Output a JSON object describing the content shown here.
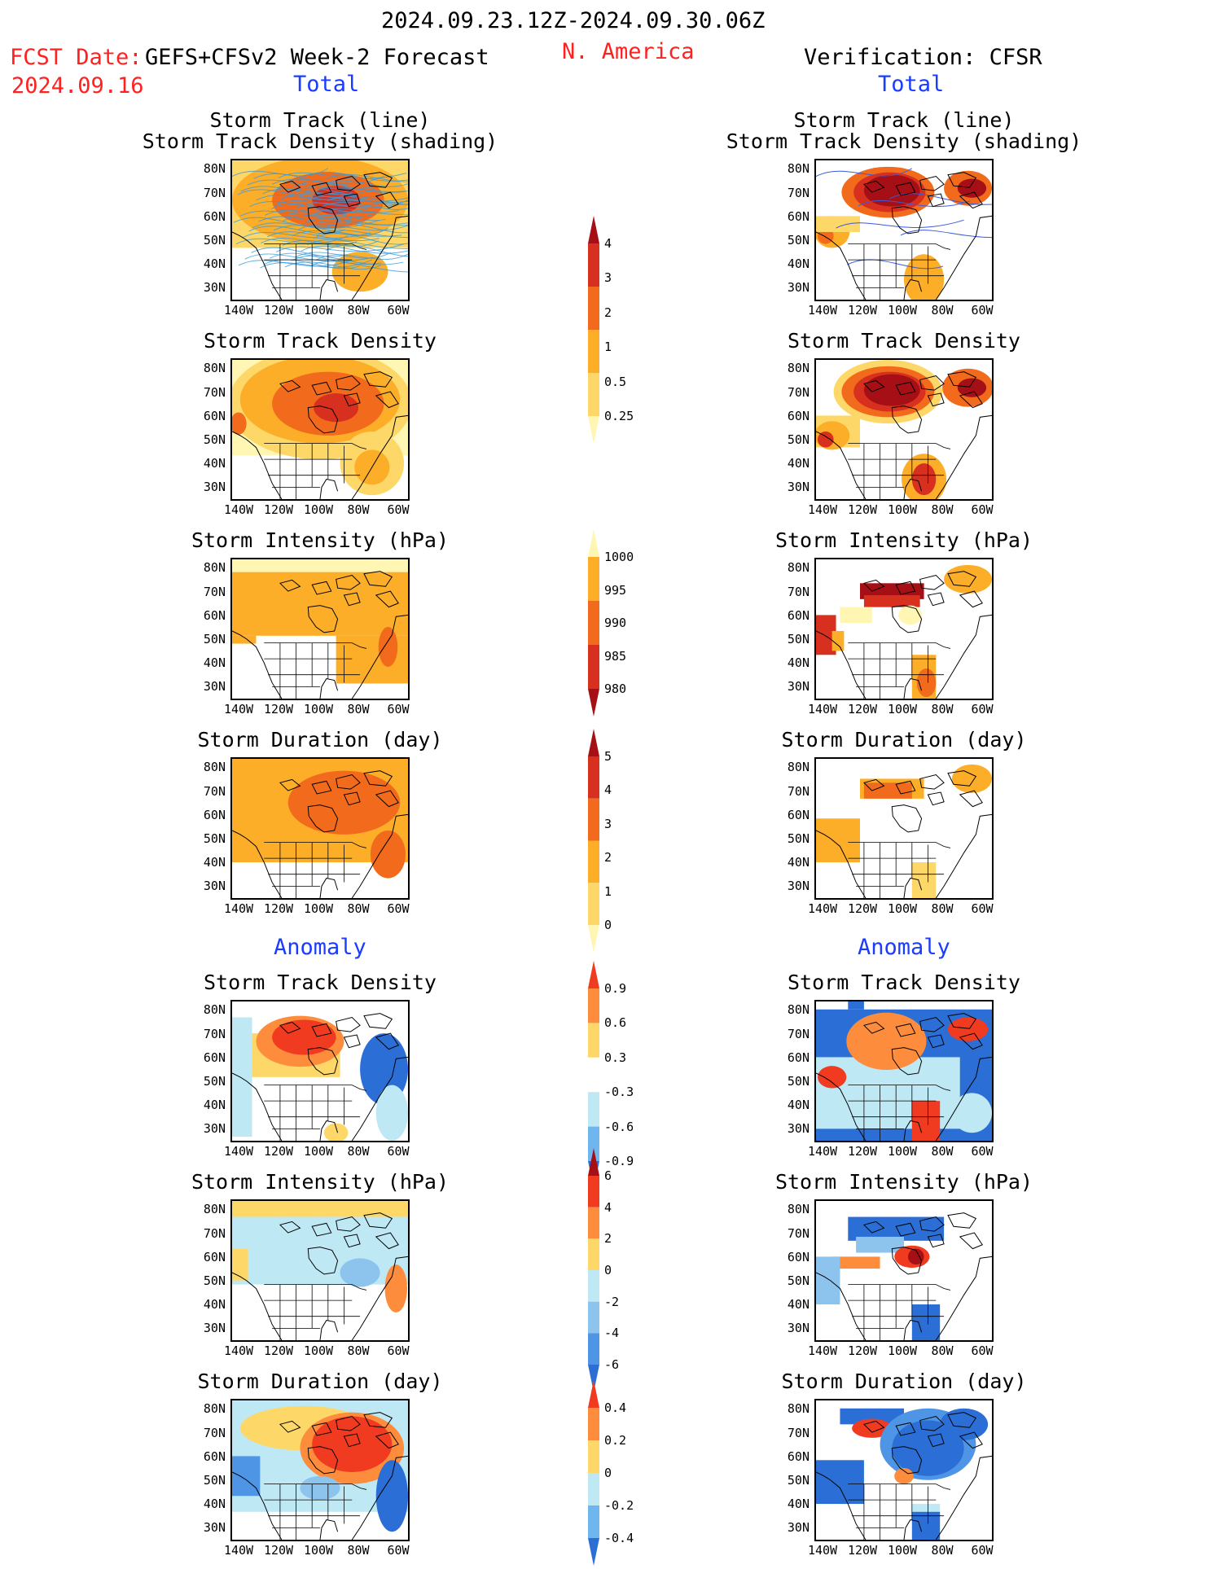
{
  "header": {
    "period": "2024.09.23.12Z-2024.09.30.06Z",
    "fcst_label": "FCST Date:",
    "fcst_date": "2024.09.16",
    "model": "GEFS+CFSv2 Week-2 Forecast",
    "region": "N. America",
    "verification": "Verification: CFSR",
    "total_left": "Total",
    "total_right": "Total",
    "anomaly_left": "Anomaly",
    "anomaly_right": "Anomaly"
  },
  "axes": {
    "lat_ticks": [
      "80N",
      "70N",
      "60N",
      "50N",
      "40N",
      "30N"
    ],
    "lon_ticks": [
      "140W",
      "120W",
      "100W",
      "80W",
      "60W"
    ]
  },
  "panels": {
    "left": [
      {
        "title1": "Storm Track (line)",
        "title2": "Storm Track Density (shading)",
        "kind": "track_fc"
      },
      {
        "title1": "Storm Track Density",
        "kind": "dens_fc"
      },
      {
        "title1": "Storm Intensity (hPa)",
        "kind": "int_fc"
      },
      {
        "title1": "Storm Duration (day)",
        "kind": "dur_fc"
      },
      {
        "title1": "Storm Track Density",
        "kind": "adens_fc"
      },
      {
        "title1": "Storm Intensity (hPa)",
        "kind": "aint_fc"
      },
      {
        "title1": "Storm Duration (day)",
        "kind": "adur_fc"
      }
    ],
    "right": [
      {
        "title1": "Storm Track (line)",
        "title2": "Storm Track Density (shading)",
        "kind": "track_ob"
      },
      {
        "title1": "Storm Track Density",
        "kind": "dens_ob"
      },
      {
        "title1": "Storm Intensity (hPa)",
        "kind": "int_ob"
      },
      {
        "title1": "Storm Duration (day)",
        "kind": "dur_ob"
      },
      {
        "title1": "Storm Track Density",
        "kind": "adens_ob"
      },
      {
        "title1": "Storm Intensity (hPa)",
        "kind": "aint_ob"
      },
      {
        "title1": "Storm Duration (day)",
        "kind": "adur_ob"
      }
    ]
  },
  "colorbars": [
    {
      "name": "density",
      "labels": [
        "4",
        "3",
        "2",
        "1",
        "0.5",
        "0.25"
      ],
      "colors": [
        "#a50f15",
        "#d7301f",
        "#f26b1d",
        "#fdae28",
        "#fdd868",
        "#fff6b4"
      ]
    },
    {
      "name": "intensity",
      "labels": [
        "1000",
        "995",
        "990",
        "985",
        "980"
      ],
      "colors": [
        "#fff6b4",
        "#fdae28",
        "#f26b1d",
        "#d7301f",
        "#a50f15"
      ]
    },
    {
      "name": "duration",
      "labels": [
        "5",
        "4",
        "3",
        "2",
        "1",
        "0"
      ],
      "colors": [
        "#a50f15",
        "#d7301f",
        "#f26b1d",
        "#fdae28",
        "#fdd868",
        "#fff6b4"
      ]
    },
    {
      "name": "anom_density",
      "labels": [
        "0.9",
        "0.6",
        "0.3",
        "-0.3",
        "-0.6",
        "-0.9"
      ],
      "colors": [
        "#f03b20",
        "#fd8d3c",
        "#fdd868",
        "#ffffff",
        "#bfe8f5",
        "#6fb6ee",
        "#2b6fd6"
      ]
    },
    {
      "name": "anom_intensity",
      "labels": [
        "6",
        "4",
        "2",
        "0",
        "-2",
        "-4",
        "-6"
      ],
      "colors": [
        "#a50f15",
        "#f03b20",
        "#fd8d3c",
        "#fdd868",
        "#bfe8f5",
        "#8cc4ee",
        "#4f95e6",
        "#2b6fd6"
      ]
    },
    {
      "name": "anom_duration",
      "labels": [
        "0.4",
        "0.2",
        "0",
        "-0.2",
        "-0.4"
      ],
      "colors": [
        "#f03b20",
        "#fd8d3c",
        "#fdd868",
        "#bfe8f5",
        "#6fb6ee",
        "#2b6fd6"
      ]
    }
  ]
}
